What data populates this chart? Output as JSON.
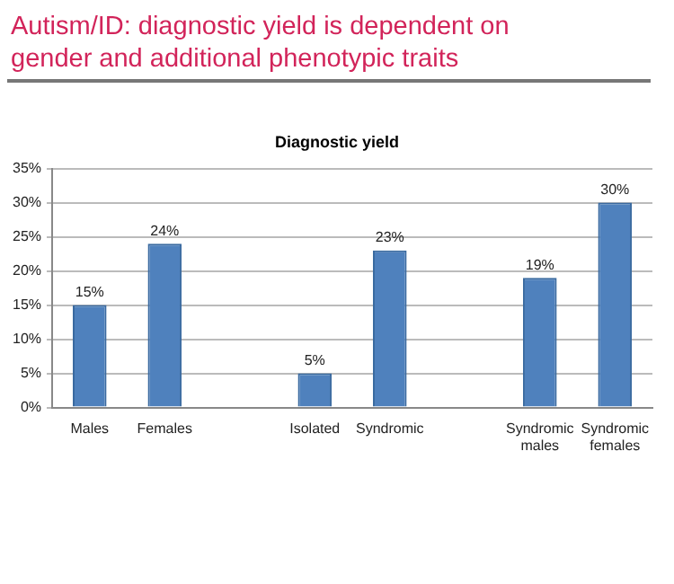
{
  "chart_data": {
    "type": "bar",
    "title": "Autism/ID: diagnostic yield is dependent on gender and additional phenotypic traits",
    "subtitle": "Diagnostic yield",
    "categories": [
      "Males",
      "Females",
      null,
      "Isolated",
      "Syndromic",
      null,
      "Syndromic males",
      "Syndromic females"
    ],
    "values": [
      15,
      24,
      null,
      5,
      23,
      null,
      19,
      30
    ],
    "color": "#4f81bd",
    "value_labels": [
      "15%",
      "24%",
      null,
      "5%",
      "23%",
      null,
      "19%",
      "30%"
    ],
    "ylim": [
      0,
      35
    ],
    "yticks": [
      {
        "value": 0,
        "label": "0%"
      },
      {
        "value": 5,
        "label": "5%"
      },
      {
        "value": 10,
        "label": "10%"
      },
      {
        "value": 15,
        "label": "15%"
      },
      {
        "value": 20,
        "label": "20%"
      },
      {
        "value": 25,
        "label": "25%"
      },
      {
        "value": 30,
        "label": "30%"
      },
      {
        "value": 35,
        "label": "35%"
      }
    ],
    "grid": "y",
    "legend": false
  }
}
